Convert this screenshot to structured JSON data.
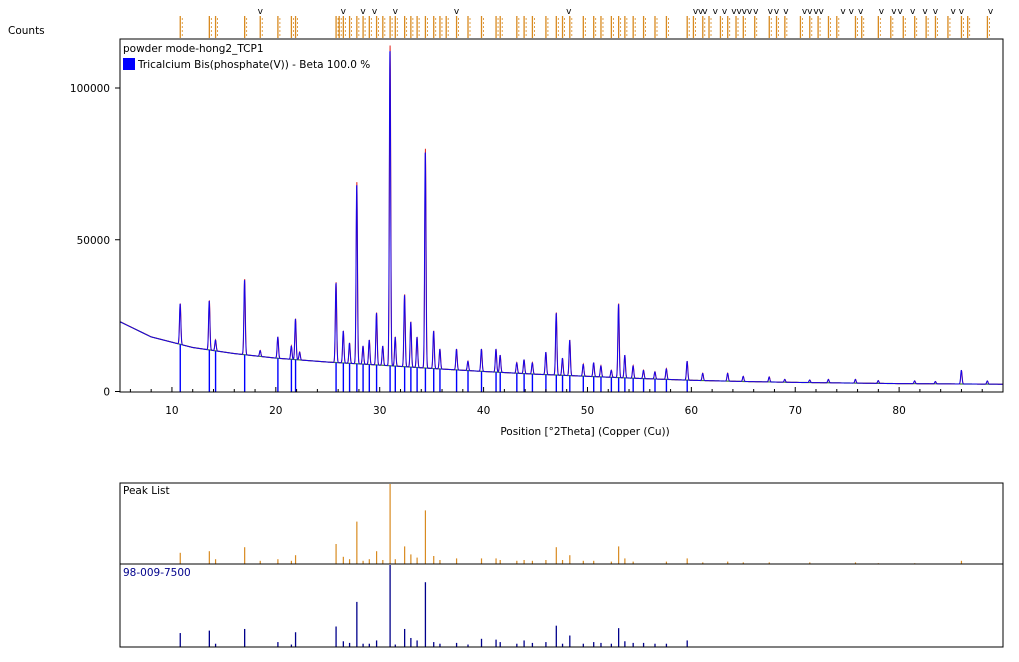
{
  "colors": {
    "pattern_blue": "#0000ff",
    "pattern_navy": "#00008b",
    "measured_red": "#e0201a",
    "peak_orange": "#d88a20",
    "background_green": "#3d8a3d",
    "frame": "#000000"
  },
  "chart_data": {
    "type": "line",
    "main": {
      "ylabel": "Counts",
      "xlabel": "Position [°2Theta] (Copper (Cu))",
      "panel_label": "powder mode-hong2_TCP1",
      "legend": [
        {
          "label": "Tricalcium Bis(phosphate(V)) - Beta 100.0 %",
          "color": "#0000ff",
          "placement": "top-left"
        }
      ],
      "xlim": [
        5,
        90
      ],
      "ylim": [
        0,
        100000
      ],
      "yticks": [
        0,
        50000,
        100000
      ],
      "ytick_labels": [
        "0",
        "50000",
        "100000"
      ],
      "xticks": [
        10,
        20,
        30,
        40,
        50,
        60,
        70,
        80
      ],
      "xtick_labels": [
        "10",
        "20",
        "30",
        "40",
        "50",
        "60",
        "70",
        "80"
      ],
      "grid": false,
      "background_curve": [
        [
          5,
          23000
        ],
        [
          8,
          18000
        ],
        [
          12,
          14500
        ],
        [
          16,
          12500
        ],
        [
          20,
          11000
        ],
        [
          25,
          9700
        ],
        [
          30,
          8700
        ],
        [
          35,
          7600
        ],
        [
          40,
          6600
        ],
        [
          45,
          5700
        ],
        [
          50,
          5000
        ],
        [
          55,
          4300
        ],
        [
          60,
          3700
        ],
        [
          65,
          3300
        ],
        [
          70,
          3000
        ],
        [
          75,
          2800
        ],
        [
          80,
          2600
        ],
        [
          85,
          2500
        ],
        [
          90,
          2400
        ]
      ],
      "peaks": [
        {
          "x": 10.8,
          "y": 29000
        },
        {
          "x": 13.6,
          "y": 30000
        },
        {
          "x": 14.2,
          "y": 17000
        },
        {
          "x": 17.0,
          "y": 37000
        },
        {
          "x": 18.5,
          "y": 13500
        },
        {
          "x": 20.2,
          "y": 18000
        },
        {
          "x": 21.5,
          "y": 15000
        },
        {
          "x": 21.9,
          "y": 24000
        },
        {
          "x": 22.3,
          "y": 13000
        },
        {
          "x": 25.8,
          "y": 36000
        },
        {
          "x": 26.5,
          "y": 20000
        },
        {
          "x": 27.1,
          "y": 16000
        },
        {
          "x": 27.8,
          "y": 69000
        },
        {
          "x": 28.4,
          "y": 15000
        },
        {
          "x": 29.0,
          "y": 17000
        },
        {
          "x": 29.7,
          "y": 26000
        },
        {
          "x": 30.3,
          "y": 15000
        },
        {
          "x": 31.0,
          "y": 114000
        },
        {
          "x": 31.5,
          "y": 18000
        },
        {
          "x": 32.4,
          "y": 32000
        },
        {
          "x": 33.0,
          "y": 23000
        },
        {
          "x": 33.6,
          "y": 18000
        },
        {
          "x": 34.4,
          "y": 80000
        },
        {
          "x": 35.2,
          "y": 20000
        },
        {
          "x": 35.8,
          "y": 14000
        },
        {
          "x": 37.4,
          "y": 14000
        },
        {
          "x": 38.5,
          "y": 10000
        },
        {
          "x": 39.8,
          "y": 14000
        },
        {
          "x": 41.2,
          "y": 14000
        },
        {
          "x": 41.6,
          "y": 12000
        },
        {
          "x": 43.2,
          "y": 9500
        },
        {
          "x": 43.9,
          "y": 10500
        },
        {
          "x": 44.7,
          "y": 9500
        },
        {
          "x": 46.0,
          "y": 13000
        },
        {
          "x": 47.0,
          "y": 26000
        },
        {
          "x": 47.6,
          "y": 11000
        },
        {
          "x": 48.3,
          "y": 17000
        },
        {
          "x": 49.6,
          "y": 9000
        },
        {
          "x": 50.6,
          "y": 9500
        },
        {
          "x": 51.3,
          "y": 8500
        },
        {
          "x": 52.3,
          "y": 7000
        },
        {
          "x": 53.0,
          "y": 29000
        },
        {
          "x": 53.6,
          "y": 12000
        },
        {
          "x": 54.4,
          "y": 8500
        },
        {
          "x": 55.4,
          "y": 7000
        },
        {
          "x": 56.5,
          "y": 6500
        },
        {
          "x": 57.6,
          "y": 7500
        },
        {
          "x": 59.6,
          "y": 10000
        },
        {
          "x": 61.1,
          "y": 6000
        },
        {
          "x": 63.5,
          "y": 6000
        },
        {
          "x": 65.0,
          "y": 5000
        },
        {
          "x": 67.5,
          "y": 4800
        },
        {
          "x": 69.0,
          "y": 4000
        },
        {
          "x": 71.4,
          "y": 3800
        },
        {
          "x": 73.2,
          "y": 4000
        },
        {
          "x": 75.8,
          "y": 4000
        },
        {
          "x": 78.0,
          "y": 3600
        },
        {
          "x": 81.5,
          "y": 3500
        },
        {
          "x": 83.5,
          "y": 3300
        },
        {
          "x": 86.0,
          "y": 7000
        },
        {
          "x": 88.5,
          "y": 3500
        }
      ]
    },
    "peak_list": {
      "title": "Peak List",
      "color": "#d88a20",
      "peaks": [
        [
          10.8,
          14
        ],
        [
          13.6,
          16
        ],
        [
          14.2,
          6
        ],
        [
          17.0,
          21
        ],
        [
          18.5,
          4
        ],
        [
          20.2,
          6
        ],
        [
          21.5,
          4
        ],
        [
          21.9,
          11
        ],
        [
          25.8,
          25
        ],
        [
          26.5,
          9
        ],
        [
          27.1,
          6
        ],
        [
          27.8,
          53
        ],
        [
          28.4,
          4
        ],
        [
          29.0,
          6
        ],
        [
          29.7,
          16
        ],
        [
          30.3,
          5
        ],
        [
          31.0,
          100
        ],
        [
          31.5,
          6
        ],
        [
          32.4,
          22
        ],
        [
          33.0,
          12
        ],
        [
          33.6,
          8
        ],
        [
          34.4,
          67
        ],
        [
          35.2,
          10
        ],
        [
          35.8,
          5
        ],
        [
          37.4,
          7
        ],
        [
          39.8,
          7
        ],
        [
          41.2,
          7
        ],
        [
          41.6,
          5
        ],
        [
          43.2,
          4
        ],
        [
          43.9,
          5
        ],
        [
          44.7,
          4
        ],
        [
          46.0,
          5
        ],
        [
          47.0,
          21
        ],
        [
          47.6,
          5
        ],
        [
          48.3,
          11
        ],
        [
          49.6,
          4
        ],
        [
          50.6,
          4
        ],
        [
          52.3,
          3
        ],
        [
          53.0,
          22
        ],
        [
          53.6,
          7
        ],
        [
          54.4,
          3
        ],
        [
          57.6,
          3
        ],
        [
          59.6,
          7
        ],
        [
          61.1,
          2
        ],
        [
          63.5,
          3
        ],
        [
          65.0,
          2
        ],
        [
          67.5,
          2
        ],
        [
          71.4,
          2
        ],
        [
          75.8,
          2
        ],
        [
          78.0,
          1
        ],
        [
          81.5,
          1
        ],
        [
          86.0,
          4
        ]
      ]
    },
    "reference": {
      "title": "98-009-7500",
      "color": "#00008b",
      "peaks": [
        [
          10.8,
          17
        ],
        [
          13.6,
          20
        ],
        [
          14.2,
          4
        ],
        [
          17.0,
          22
        ],
        [
          20.2,
          6
        ],
        [
          21.5,
          3
        ],
        [
          21.9,
          18
        ],
        [
          25.8,
          25
        ],
        [
          26.5,
          7
        ],
        [
          27.1,
          5
        ],
        [
          27.8,
          55
        ],
        [
          28.4,
          4
        ],
        [
          29.0,
          4
        ],
        [
          29.7,
          8
        ],
        [
          31.0,
          100
        ],
        [
          31.5,
          3
        ],
        [
          32.4,
          22
        ],
        [
          33.0,
          11
        ],
        [
          33.6,
          8
        ],
        [
          34.4,
          79
        ],
        [
          35.2,
          6
        ],
        [
          35.8,
          4
        ],
        [
          37.4,
          5
        ],
        [
          38.5,
          3
        ],
        [
          39.8,
          10
        ],
        [
          41.2,
          9
        ],
        [
          41.6,
          6
        ],
        [
          43.2,
          4
        ],
        [
          43.9,
          8
        ],
        [
          44.7,
          5
        ],
        [
          46.0,
          6
        ],
        [
          47.0,
          26
        ],
        [
          47.6,
          4
        ],
        [
          48.3,
          14
        ],
        [
          49.6,
          4
        ],
        [
          50.6,
          6
        ],
        [
          51.3,
          5
        ],
        [
          52.3,
          4
        ],
        [
          53.0,
          23
        ],
        [
          53.6,
          7
        ],
        [
          54.4,
          5
        ],
        [
          55.4,
          5
        ],
        [
          56.5,
          4
        ],
        [
          57.6,
          4
        ],
        [
          59.6,
          8
        ]
      ]
    },
    "tick_marks": {
      "color": "#d88a20",
      "positions": [
        10.8,
        13.6,
        14.2,
        17.0,
        18.5,
        20.2,
        21.5,
        21.9,
        25.8,
        26.1,
        26.5,
        27.1,
        27.8,
        28.4,
        29.0,
        29.7,
        30.3,
        31.0,
        31.5,
        32.4,
        33.0,
        33.6,
        34.4,
        35.2,
        35.8,
        36.4,
        37.4,
        38.5,
        39.8,
        41.2,
        41.6,
        43.2,
        43.9,
        44.7,
        46.0,
        47.0,
        47.6,
        48.3,
        49.6,
        50.6,
        51.3,
        52.3,
        53.0,
        53.6,
        54.4,
        55.4,
        56.5,
        57.6,
        59.6,
        60.2,
        61.1,
        61.7,
        62.8,
        63.5,
        64.3,
        65.0,
        66.1,
        67.5,
        68.2,
        69.0,
        70.5,
        71.4,
        72.2,
        73.2,
        74.0,
        75.8,
        76.4,
        78.0,
        79.2,
        80.4,
        81.5,
        82.6,
        83.5,
        84.7,
        86.0,
        86.6,
        88.5
      ],
      "v_markers": [
        18.5,
        26.5,
        28.4,
        29.5,
        31.5,
        37.4,
        48.2,
        60.4,
        60.9,
        61.3,
        62.3,
        63.2,
        64.1,
        64.6,
        65.1,
        65.6,
        66.2,
        67.6,
        68.2,
        69.1,
        70.9,
        71.4,
        72.0,
        72.5,
        74.6,
        75.4,
        76.3,
        78.3,
        79.5,
        80.1,
        81.3,
        82.5,
        83.5,
        85.2,
        86.0,
        88.8
      ]
    }
  }
}
